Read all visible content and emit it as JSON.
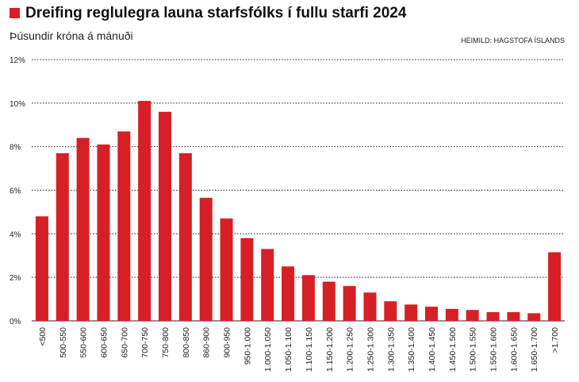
{
  "chart_data": {
    "type": "bar",
    "title": "Dreifing reglulegra launa starfsfólks í fullu starfi 2024",
    "subtitle": "Þúsundir króna á mánuði",
    "source": "HEIMILD: HAGSTOFA ÍSLANDS",
    "categories": [
      "<500",
      "500-550",
      "550-600",
      "600-650",
      "650-700",
      "700-750",
      "750-800",
      "800-850",
      "860-900",
      "900-950",
      "950-1.000",
      "1.000-1.050",
      "1.050-1.100",
      "1.100-1.150",
      "1.150-1.200",
      "1.200-1.250",
      "1.250-1.300",
      "1.300-1.350",
      "1.350-1.400",
      "1.400-1.450",
      "1.450-1.500",
      "1.500-1.550",
      "1.550-1.600",
      "1.600-1.650",
      "1.650-1.700",
      ">1.700"
    ],
    "values": [
      4.8,
      7.7,
      8.4,
      8.1,
      8.7,
      10.1,
      9.6,
      7.7,
      5.65,
      4.7,
      3.8,
      3.3,
      2.5,
      2.1,
      1.8,
      1.6,
      1.3,
      0.9,
      0.75,
      0.65,
      0.55,
      0.5,
      0.4,
      0.4,
      0.35,
      3.15
    ],
    "color": "#d71f26",
    "ylim": [
      0,
      12
    ],
    "yticks": [
      {
        "value": 0,
        "label": "0%"
      },
      {
        "value": 2,
        "label": "2%"
      },
      {
        "value": 4,
        "label": "4%"
      },
      {
        "value": 6,
        "label": "6%"
      },
      {
        "value": 8,
        "label": "8%"
      },
      {
        "value": 10,
        "label": "10%"
      },
      {
        "value": 12,
        "label": "12%"
      }
    ],
    "grid": true
  }
}
